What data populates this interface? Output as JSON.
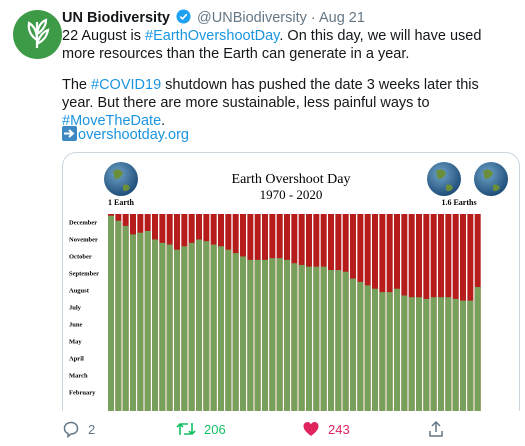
{
  "tweet": {
    "author": {
      "name": "UN Biodiversity",
      "handle": "@UNBiodiversity",
      "separator": "·",
      "date": "Aug 21"
    },
    "paragraphs": [
      [
        "22 August is ",
        "#EarthOvershootDay",
        ". On this day, we will have used more resources than the Earth can generate in a year."
      ],
      [
        "The ",
        "#COVID19",
        " shutdown has pushed the date 3 weeks later this year. But there are more sustainable, less painful ways to ",
        "#MoveTheDate",
        "."
      ]
    ],
    "link": "overshootday.org",
    "actions": {
      "replies": "2",
      "retweets": "206",
      "likes": "243"
    }
  },
  "chart_data": {
    "type": "bar",
    "title": "Earth Overshoot Day",
    "subtitle": "1970 - 2020",
    "left_label": "1 Earth",
    "right_label": "1.6 Earths",
    "color": "#77a05a",
    "background_color": "#b71c1c",
    "values": [
      11.9,
      11.6,
      11.3,
      10.8,
      10.9,
      11.0,
      10.5,
      10.3,
      10.2,
      9.9,
      10.1,
      10.3,
      10.5,
      10.4,
      10.2,
      10.1,
      9.9,
      9.7,
      9.5,
      9.3,
      9.3,
      9.3,
      9.4,
      9.4,
      9.3,
      9.1,
      9.0,
      8.9,
      8.9,
      8.9,
      8.7,
      8.7,
      8.6,
      8.2,
      8.0,
      7.8,
      7.6,
      7.4,
      7.4,
      7.6,
      7.2,
      7.1,
      7.1,
      7.0,
      7.1,
      7.1,
      7.1,
      7.0,
      6.9,
      6.9,
      7.7
    ],
    "ylim": [
      0.4,
      12
    ],
    "yticks": [
      {
        "value": 1.5,
        "label": "February"
      },
      {
        "value": 2.5,
        "label": "March"
      },
      {
        "value": 3.5,
        "label": "April"
      },
      {
        "value": 4.5,
        "label": "May"
      },
      {
        "value": 5.5,
        "label": "June"
      },
      {
        "value": 6.5,
        "label": "July"
      },
      {
        "value": 7.5,
        "label": "August"
      },
      {
        "value": 8.5,
        "label": "September"
      },
      {
        "value": 9.5,
        "label": "October"
      },
      {
        "value": 10.5,
        "label": "November"
      },
      {
        "value": 11.5,
        "label": "December"
      }
    ]
  }
}
